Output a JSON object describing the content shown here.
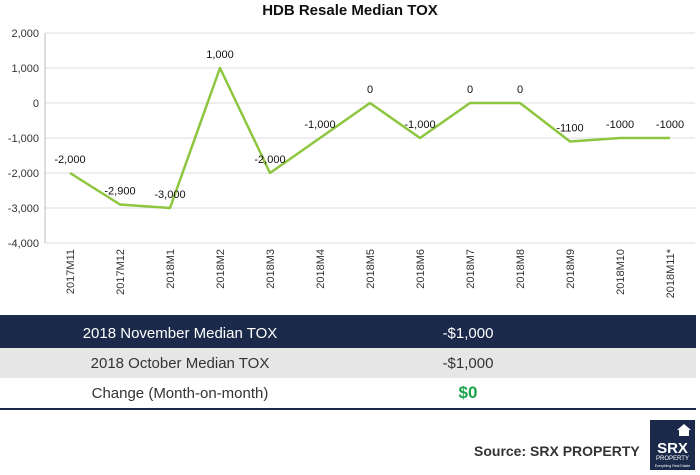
{
  "chart_data": {
    "type": "line",
    "title": "HDB Resale Median TOX",
    "categories": [
      "2017M11",
      "2017M12",
      "2018M1",
      "2018M2",
      "2018M3",
      "2018M4",
      "2018M5",
      "2018M6",
      "2018M7",
      "2018M8",
      "2018M9",
      "2018M10",
      "2018M11*"
    ],
    "series": [
      {
        "values": [
          -2000,
          -2900,
          -3000,
          1000,
          -2000,
          -1000,
          0,
          -1000,
          0,
          0,
          -1100,
          -1000,
          -1000
        ],
        "color": "#8dc63f"
      }
    ],
    "data_labels": [
      "-2,000",
      "-2,900",
      "-3,000",
      "1,000",
      "-2,000",
      "-1,000",
      "0",
      "-1,000",
      "0",
      "0",
      "-1100",
      "-1000",
      "-1000"
    ],
    "yticks": [
      2000,
      1000,
      0,
      -1000,
      -2000,
      -3000,
      -4000
    ],
    "ytick_labels": [
      "2,000",
      "1,000",
      "0",
      "-1,000",
      "-2,000",
      "-3,000",
      "-4,000"
    ],
    "ylim": [
      -4000,
      2000
    ],
    "grid": true,
    "xlabel": "",
    "ylabel": ""
  },
  "summary": {
    "rows": [
      {
        "label": "2018 November Median TOX",
        "value": "-$1,000"
      },
      {
        "label": "2018 October Median TOX",
        "value": "-$1,000"
      },
      {
        "label": "Change (Month-on-month)",
        "value": "$0"
      }
    ]
  },
  "footer": {
    "source": "Source:  SRX PROPERTY",
    "logo_text": "SRX",
    "logo_sub": "PROPERTY",
    "logo_tagline": "Everything Real Estate"
  },
  "colors": {
    "navy": "#1b2a4a",
    "line": "#8dc63f",
    "positive": "#1aa34a"
  }
}
